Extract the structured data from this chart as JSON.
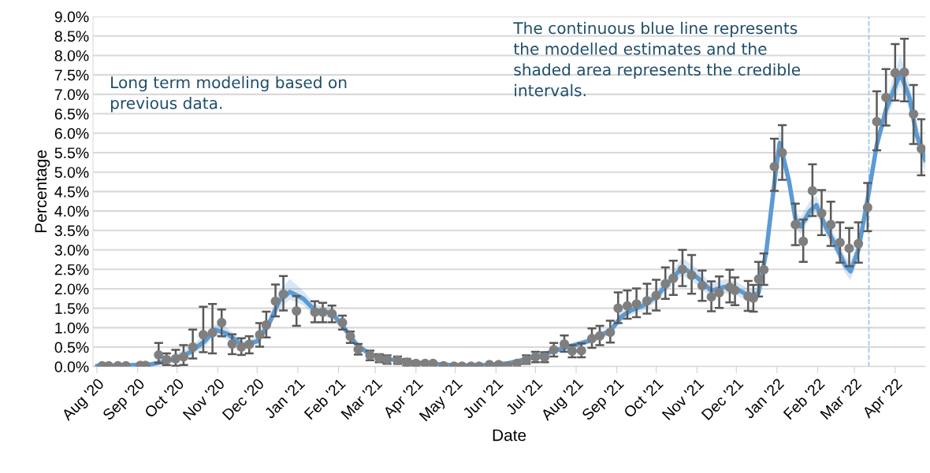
{
  "chart_data": {
    "type": "line",
    "xlabel": "Date",
    "ylabel": "Percentage",
    "annotations": [
      "Long term modeling based on previous data.",
      "The continuous blue line represents the modelled estimates and the shaded area represents the credible intervals."
    ],
    "xlim": [
      "2020-07-29",
      "2022-04-24"
    ],
    "xticks": [
      {
        "value": "2020-08-01",
        "label": "Aug '20"
      },
      {
        "value": "2020-09-01",
        "label": "Sep '20"
      },
      {
        "value": "2020-10-01",
        "label": "Oct '20"
      },
      {
        "value": "2020-11-01",
        "label": "Nov '20"
      },
      {
        "value": "2020-12-01",
        "label": "Dec '20"
      },
      {
        "value": "2021-01-01",
        "label": "Jan '21"
      },
      {
        "value": "2021-02-01",
        "label": "Feb '21"
      },
      {
        "value": "2021-03-01",
        "label": "Mar '21"
      },
      {
        "value": "2021-04-01",
        "label": "Apr '21"
      },
      {
        "value": "2021-05-01",
        "label": "May '21"
      },
      {
        "value": "2021-06-01",
        "label": "Jun '21"
      },
      {
        "value": "2021-07-01",
        "label": "Jul '21"
      },
      {
        "value": "2021-08-01",
        "label": "Aug '21"
      },
      {
        "value": "2021-09-01",
        "label": "Sep '21"
      },
      {
        "value": "2021-10-01",
        "label": "Oct '21"
      },
      {
        "value": "2021-11-01",
        "label": "Nov '21"
      },
      {
        "value": "2021-12-01",
        "label": "Dec '21"
      },
      {
        "value": "2022-01-01",
        "label": "Jan '22"
      },
      {
        "value": "2022-02-01",
        "label": "Feb '22"
      },
      {
        "value": "2022-03-01",
        "label": "Mar '22"
      },
      {
        "value": "2022-04-01",
        "label": "Apr '22"
      }
    ],
    "ylim": [
      0,
      9
    ],
    "yticks": [
      {
        "value": 0,
        "label": "0.0%"
      },
      {
        "value": 0.5,
        "label": "0.5%"
      },
      {
        "value": 1,
        "label": "1.0%"
      },
      {
        "value": 1.5,
        "label": "1.5%"
      },
      {
        "value": 2,
        "label": "2.0%"
      },
      {
        "value": 2.5,
        "label": "2.5%"
      },
      {
        "value": 3,
        "label": "3.0%"
      },
      {
        "value": 3.5,
        "label": "3.5%"
      },
      {
        "value": 4,
        "label": "4.0%"
      },
      {
        "value": 4.5,
        "label": "4.5%"
      },
      {
        "value": 5,
        "label": "5.0%"
      },
      {
        "value": 5.5,
        "label": "5.5%"
      },
      {
        "value": 6,
        "label": "6.0%"
      },
      {
        "value": 6.5,
        "label": "6.5%"
      },
      {
        "value": 7,
        "label": "7.0%"
      },
      {
        "value": 7.5,
        "label": "7.5%"
      },
      {
        "value": 8,
        "label": "8.0%"
      },
      {
        "value": 8.5,
        "label": "8.5%"
      },
      {
        "value": 9,
        "label": "9.0%"
      }
    ],
    "grid": "y",
    "legend": false,
    "ref_lines": [
      {
        "axis": "x",
        "value": "2022-03-12",
        "color": "#9dc3e6",
        "line_style": "dashed"
      }
    ],
    "series": [
      {
        "color": "#5b9bd5",
        "x": [
          "2020-08-01",
          "2020-08-20",
          "2020-09-10",
          "2020-09-25",
          "2020-10-10",
          "2020-10-22",
          "2020-10-30",
          "2020-11-08",
          "2020-11-20",
          "2020-12-01",
          "2020-12-10",
          "2020-12-18",
          "2020-12-26",
          "2021-01-05",
          "2021-01-14",
          "2021-01-27",
          "2021-02-04",
          "2021-02-14",
          "2021-02-25",
          "2021-03-10",
          "2021-04-01",
          "2021-05-01",
          "2021-05-20",
          "2021-06-10",
          "2021-07-01",
          "2021-07-20",
          "2021-08-10",
          "2021-08-27",
          "2021-09-05",
          "2021-09-12",
          "2021-09-20",
          "2021-10-01",
          "2021-10-14",
          "2021-10-21",
          "2021-11-01",
          "2021-11-12",
          "2021-11-22",
          "2021-12-01",
          "2021-12-12",
          "2021-12-18",
          "2021-12-24",
          "2021-12-31",
          "2022-01-03",
          "2022-01-10",
          "2022-01-15",
          "2022-01-19",
          "2022-01-26",
          "2022-01-31",
          "2022-02-07",
          "2022-02-15",
          "2022-02-22",
          "2022-02-26",
          "2022-03-04",
          "2022-03-11",
          "2022-03-18",
          "2022-03-25",
          "2022-04-05",
          "2022-04-12",
          "2022-04-17",
          "2022-04-24"
        ],
        "values": [
          0.02,
          0.03,
          0.05,
          0.15,
          0.35,
          0.65,
          0.95,
          0.85,
          0.55,
          0.65,
          1.1,
          1.7,
          1.92,
          1.75,
          1.45,
          1.38,
          1.05,
          0.6,
          0.3,
          0.2,
          0.1,
          0.03,
          0.03,
          0.08,
          0.25,
          0.45,
          0.65,
          0.92,
          1.3,
          1.45,
          1.55,
          1.8,
          2.3,
          2.55,
          2.3,
          1.95,
          2.05,
          2.0,
          1.8,
          1.9,
          3.0,
          5.0,
          5.75,
          4.8,
          3.8,
          3.6,
          4.0,
          4.15,
          3.6,
          3.1,
          2.6,
          2.45,
          3.0,
          4.3,
          5.7,
          6.6,
          7.55,
          6.9,
          6.0,
          5.3
        ],
        "lower": [
          0.0,
          0.0,
          0.01,
          0.08,
          0.25,
          0.5,
          0.8,
          0.7,
          0.45,
          0.55,
          0.95,
          1.5,
          1.72,
          1.58,
          1.32,
          1.25,
          0.95,
          0.52,
          0.25,
          0.16,
          0.07,
          0.01,
          0.01,
          0.05,
          0.2,
          0.38,
          0.57,
          0.82,
          1.18,
          1.33,
          1.42,
          1.66,
          2.12,
          2.35,
          2.1,
          1.78,
          1.88,
          1.83,
          1.65,
          1.75,
          2.8,
          4.75,
          5.45,
          4.55,
          3.6,
          3.4,
          3.8,
          3.95,
          3.4,
          2.9,
          2.4,
          2.22,
          2.8,
          4.1,
          5.5,
          6.35,
          7.2,
          6.6,
          5.7,
          5.0
        ],
        "upper": [
          0.05,
          0.06,
          0.1,
          0.25,
          0.48,
          0.82,
          1.1,
          1.0,
          0.65,
          0.78,
          1.25,
          1.95,
          2.25,
          1.95,
          1.6,
          1.5,
          1.18,
          0.68,
          0.36,
          0.24,
          0.13,
          0.05,
          0.05,
          0.11,
          0.3,
          0.52,
          0.73,
          1.02,
          1.42,
          1.58,
          1.68,
          1.95,
          2.48,
          2.8,
          2.52,
          2.12,
          2.25,
          2.18,
          1.97,
          2.06,
          3.2,
          5.25,
          6.1,
          5.05,
          4.0,
          3.85,
          4.25,
          4.4,
          3.8,
          3.32,
          2.82,
          2.7,
          3.2,
          4.5,
          5.9,
          6.85,
          8.0,
          7.25,
          6.3,
          5.6
        ]
      },
      {
        "type": "scatter",
        "color": "#7f7f7f",
        "marker": "circle",
        "x": [
          "2020-08-05",
          "2020-08-10",
          "2020-08-17",
          "2020-08-23",
          "2020-09-03",
          "2020-09-07",
          "2020-09-17",
          "2020-09-23",
          "2020-09-30",
          "2020-10-06",
          "2020-10-13",
          "2020-10-21",
          "2020-10-28",
          "2020-11-04",
          "2020-11-12",
          "2020-11-19",
          "2020-11-25",
          "2020-12-03",
          "2020-12-08",
          "2020-12-15",
          "2020-12-21",
          "2020-12-31",
          "2021-01-14",
          "2021-01-20",
          "2021-01-27",
          "2021-02-04",
          "2021-02-10",
          "2021-02-16",
          "2021-02-25",
          "2021-03-04",
          "2021-03-10",
          "2021-03-18",
          "2021-03-25",
          "2021-04-01",
          "2021-04-08",
          "2021-04-14",
          "2021-04-22",
          "2021-04-30",
          "2021-05-06",
          "2021-05-13",
          "2021-05-19",
          "2021-05-27",
          "2021-06-03",
          "2021-06-10",
          "2021-06-17",
          "2021-06-24",
          "2021-07-01",
          "2021-07-08",
          "2021-07-15",
          "2021-07-23",
          "2021-07-29",
          "2021-08-05",
          "2021-08-13",
          "2021-08-19",
          "2021-08-27",
          "2021-09-02",
          "2021-09-09",
          "2021-09-16",
          "2021-09-24",
          "2021-10-01",
          "2021-10-08",
          "2021-10-14",
          "2021-10-21",
          "2021-10-28",
          "2021-11-05",
          "2021-11-12",
          "2021-11-18",
          "2021-11-26",
          "2021-11-30",
          "2021-12-10",
          "2021-12-14",
          "2021-12-18",
          "2021-12-22",
          "2021-12-30",
          "2022-01-05",
          "2022-01-15",
          "2022-01-21",
          "2022-01-28",
          "2022-02-04",
          "2022-02-11",
          "2022-02-18",
          "2022-02-25",
          "2022-03-04",
          "2022-03-11",
          "2022-03-18",
          "2022-03-25",
          "2022-04-01",
          "2022-04-08",
          "2022-04-15",
          "2022-04-21"
        ],
        "values": [
          0.02,
          0.02,
          0.02,
          0.02,
          0.03,
          0.03,
          0.3,
          0.18,
          0.2,
          0.25,
          0.5,
          0.82,
          0.87,
          1.13,
          0.58,
          0.5,
          0.57,
          0.82,
          1.07,
          1.68,
          1.86,
          1.43,
          1.4,
          1.4,
          1.36,
          1.13,
          0.78,
          0.44,
          0.29,
          0.22,
          0.18,
          0.16,
          0.11,
          0.08,
          0.08,
          0.08,
          0.02,
          0.01,
          0.01,
          0.01,
          0.01,
          0.05,
          0.05,
          0.02,
          0.08,
          0.17,
          0.25,
          0.24,
          0.43,
          0.58,
          0.4,
          0.41,
          0.72,
          0.79,
          0.88,
          1.5,
          1.56,
          1.61,
          1.69,
          1.83,
          2.13,
          2.27,
          2.5,
          2.35,
          2.08,
          1.79,
          1.9,
          2.04,
          1.96,
          1.81,
          1.76,
          2.25,
          2.49,
          5.14,
          5.5,
          3.65,
          3.22,
          4.52,
          3.94,
          3.65,
          3.19,
          3.04,
          3.16,
          4.09,
          6.3,
          6.92,
          7.55,
          7.57,
          6.49,
          5.6
        ],
        "errors": [
          null,
          null,
          null,
          null,
          null,
          null,
          [
            0.09,
            0.61
          ],
          [
            0.04,
            0.34
          ],
          [
            0.02,
            0.43
          ],
          [
            0.04,
            0.55
          ],
          [
            0.21,
            0.95
          ],
          [
            0.37,
            1.54
          ],
          [
            0.34,
            1.61
          ],
          [
            0.78,
            1.47
          ],
          [
            0.32,
            0.83
          ],
          [
            0.3,
            0.73
          ],
          [
            0.34,
            0.78
          ],
          [
            0.51,
            1.12
          ],
          [
            0.75,
            1.41
          ],
          [
            1.29,
            2.11
          ],
          [
            1.44,
            2.33
          ],
          [
            1.05,
            1.81
          ],
          [
            1.14,
            1.68
          ],
          [
            1.14,
            1.64
          ],
          [
            1.14,
            1.57
          ],
          [
            0.95,
            1.31
          ],
          [
            0.61,
            0.9
          ],
          [
            0.31,
            0.58
          ],
          [
            0.16,
            0.41
          ],
          [
            0.11,
            0.32
          ],
          [
            0.07,
            0.29
          ],
          [
            0.07,
            0.26
          ],
          [
            0.03,
            0.2
          ],
          [
            0.03,
            0.12
          ],
          null,
          null,
          null,
          null,
          null,
          null,
          null,
          null,
          null,
          null,
          null,
          [
            0.07,
            0.29
          ],
          [
            0.11,
            0.38
          ],
          [
            0.11,
            0.37
          ],
          [
            0.26,
            0.61
          ],
          [
            0.38,
            0.8
          ],
          [
            0.24,
            0.55
          ],
          [
            0.24,
            0.6
          ],
          [
            0.48,
            0.98
          ],
          [
            0.55,
            1.05
          ],
          [
            0.62,
            1.18
          ],
          [
            1.12,
            1.91
          ],
          [
            1.23,
            1.96
          ],
          [
            1.27,
            2.01
          ],
          [
            1.36,
            2.13
          ],
          [
            1.44,
            2.23
          ],
          [
            1.74,
            2.55
          ],
          [
            1.84,
            2.72
          ],
          [
            2.07,
            3.0
          ],
          [
            1.87,
            2.87
          ],
          [
            1.69,
            2.47
          ],
          [
            1.42,
            2.19
          ],
          [
            1.51,
            2.32
          ],
          [
            1.65,
            2.49
          ],
          [
            1.58,
            2.29
          ],
          [
            1.43,
            2.2
          ],
          [
            1.41,
            2.1
          ],
          [
            1.8,
            2.69
          ],
          [
            2.1,
            2.91
          ],
          [
            4.52,
            5.86
          ],
          [
            4.8,
            6.21
          ],
          [
            3.12,
            4.19
          ],
          [
            2.69,
            3.78
          ],
          [
            3.87,
            5.2
          ],
          [
            3.38,
            4.54
          ],
          [
            3.1,
            4.24
          ],
          [
            2.67,
            3.71
          ],
          [
            2.58,
            3.56
          ],
          [
            2.67,
            3.71
          ],
          [
            3.48,
            4.72
          ],
          [
            5.56,
            7.08
          ],
          [
            6.2,
            7.65
          ],
          [
            6.84,
            8.29
          ],
          [
            6.82,
            8.43
          ],
          [
            5.72,
            7.24
          ],
          [
            4.92,
            6.36
          ]
        ]
      }
    ]
  }
}
